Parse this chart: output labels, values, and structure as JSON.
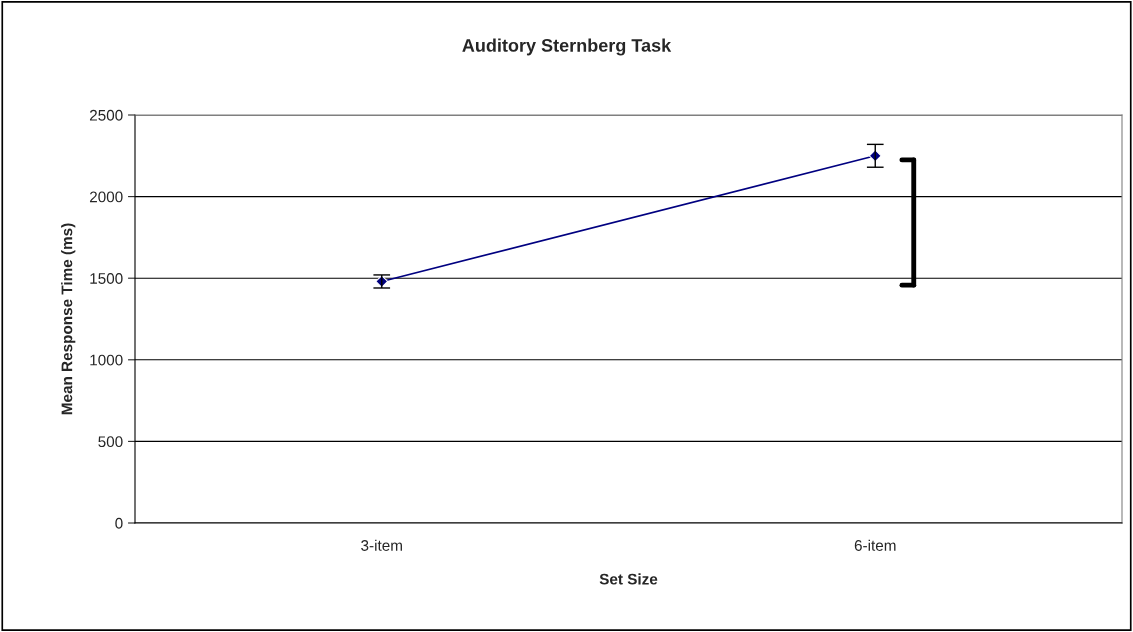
{
  "chart_data": {
    "type": "line",
    "title": "Auditory Sternberg Task",
    "xlabel": "Set Size",
    "ylabel": "Mean Response Time (ms)",
    "categories": [
      "3-item",
      "6-item"
    ],
    "series": [
      {
        "color": "#000080",
        "values": [
          1480,
          2250
        ],
        "errors": [
          40,
          70
        ]
      }
    ],
    "ylim": [
      0,
      2500
    ],
    "yticks": [
      0,
      500,
      1000,
      1500,
      2000,
      2500
    ],
    "grid": "y",
    "marker": "diamond",
    "line_style": "solid"
  }
}
